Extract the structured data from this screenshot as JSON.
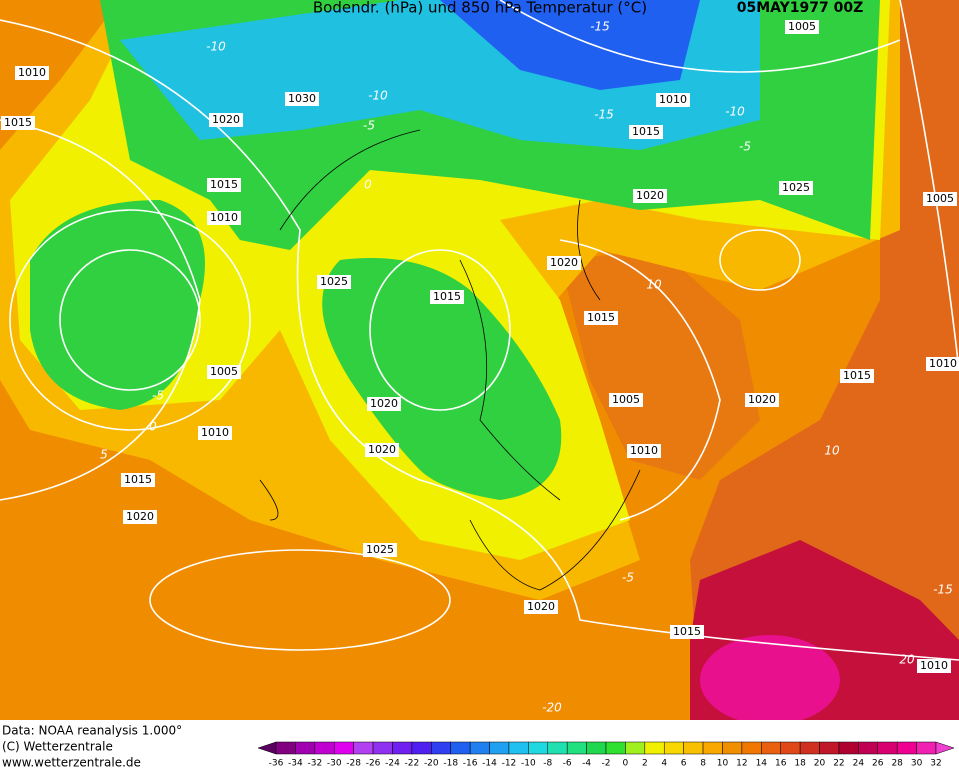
{
  "header": {
    "title": "Bodendr. (hPa) und 850 hPa Temperatur (°C)",
    "date": "05MAY1977 00Z"
  },
  "isobar_labels": [
    "1010",
    "1015",
    "1030",
    "1020",
    "1015",
    "1010",
    "1025",
    "1015",
    "1005",
    "1020",
    "1010",
    "1020",
    "1015",
    "1020",
    "1025",
    "1020",
    "1015",
    "1010",
    "1005",
    "1010",
    "1015",
    "1020",
    "1025",
    "1005",
    "1020",
    "1015",
    "1005",
    "1020",
    "1015",
    "1010",
    "1010"
  ],
  "temperature_labels": [
    "-15",
    "-10",
    "-10",
    "-15",
    "-10",
    "-5",
    "-5",
    "0",
    "-5",
    "0",
    "5",
    "10",
    "10",
    "-5",
    "-15",
    "20",
    "-20"
  ],
  "footer": {
    "data": "Data: NOAA reanalysis 1.000°",
    "copyright": "(C) Wetterzentrale",
    "url": "www.wetterzentrale.de"
  },
  "scale": {
    "labels": [
      -36,
      -34,
      -32,
      -30,
      -28,
      -26,
      -24,
      -22,
      -20,
      -18,
      -16,
      -14,
      -12,
      -10,
      -8,
      -6,
      -4,
      -2,
      0,
      2,
      4,
      6,
      8,
      10,
      12,
      14,
      16,
      18,
      20,
      22,
      24,
      26,
      28,
      30,
      32
    ],
    "colors": [
      "#5a0060",
      "#800080",
      "#a000b0",
      "#c000d0",
      "#e000f0",
      "#b040f0",
      "#9030f0",
      "#7020f0",
      "#5020f0",
      "#3040f0",
      "#2060f0",
      "#2080f0",
      "#20a0f0",
      "#20c0f0",
      "#20d8e0",
      "#20e0b0",
      "#20e080",
      "#20d850",
      "#30e030",
      "#a0f020",
      "#f0f000",
      "#f8d800",
      "#f8c000",
      "#f8a800",
      "#f09000",
      "#f07800",
      "#e86010",
      "#e04818",
      "#d03020",
      "#c01828",
      "#b00030",
      "#c00050",
      "#d80070",
      "#f00090",
      "#f020b0",
      "#f040d0"
    ]
  }
}
